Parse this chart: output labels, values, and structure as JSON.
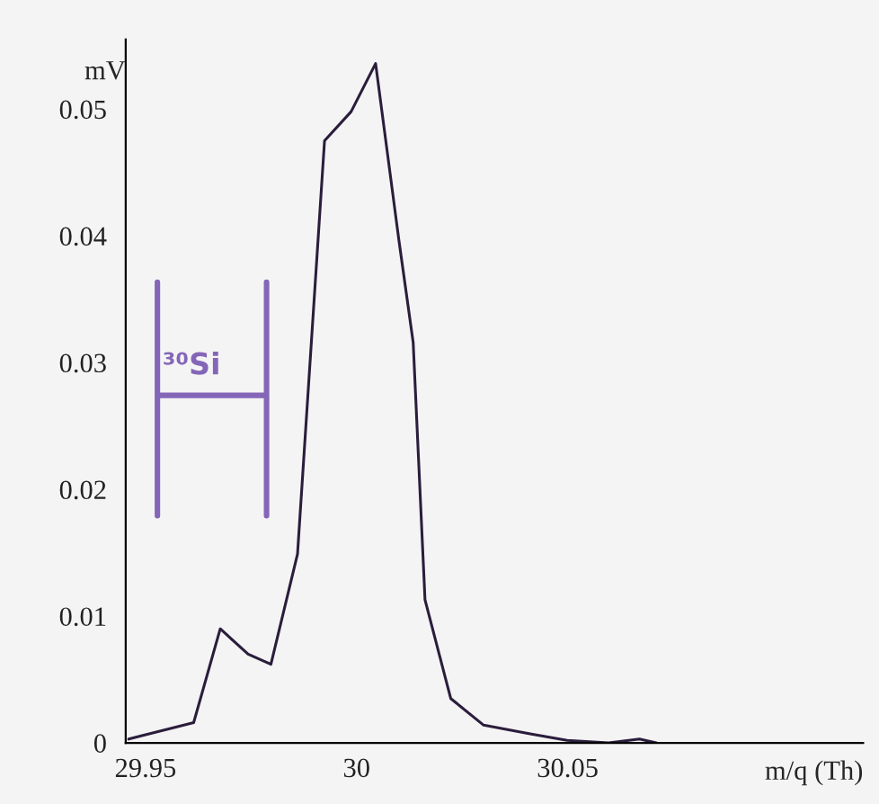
{
  "chart_data": {
    "type": "line",
    "xlabel": "m/q (Th)",
    "ylabel": "mV",
    "annotations": [
      "³⁰Si"
    ],
    "series": [
      {
        "color": "#2b1d3c",
        "x": [
          29.946,
          29.9614,
          29.9677,
          29.9743,
          29.9797,
          29.986,
          29.9924,
          29.9987,
          30.0045,
          30.01,
          30.0134,
          30.0162,
          30.0223,
          30.0301,
          30.0414,
          30.0499,
          30.0597,
          30.067,
          30.071
        ],
        "values": [
          0.0003,
          0.0016,
          0.009,
          0.007,
          0.0062,
          0.0149,
          0.0475,
          0.0498,
          0.0536,
          0.0397,
          0.0316,
          0.0113,
          0.0035,
          0.0014,
          0.0007,
          0.0002,
          0.0,
          0.0003,
          0.0
        ]
      }
    ],
    "xlim": [
      29.9453,
      30.12
    ],
    "ylim": [
      0,
      0.0555
    ],
    "xticks": [
      29.95,
      30,
      30.05
    ],
    "yticks": [
      0,
      0.01,
      0.02,
      0.03,
      0.04,
      0.05
    ],
    "grid": false,
    "legend": false,
    "marker": "none",
    "line_style": "solid"
  }
}
